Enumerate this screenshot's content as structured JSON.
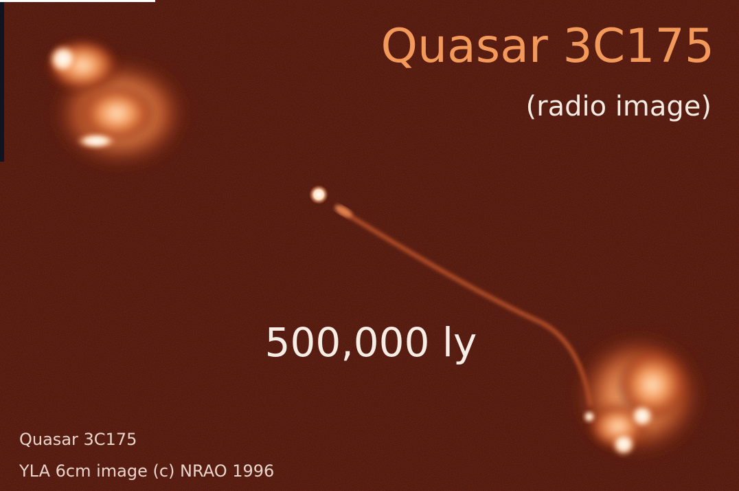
{
  "title": "Quasar 3C175",
  "subtitle": "(radio image)",
  "scale_label": "500,000 ly",
  "caption": {
    "line1": "Quasar 3C175",
    "line2": "YLA 6cm image (c) NRAO 1996"
  }
}
